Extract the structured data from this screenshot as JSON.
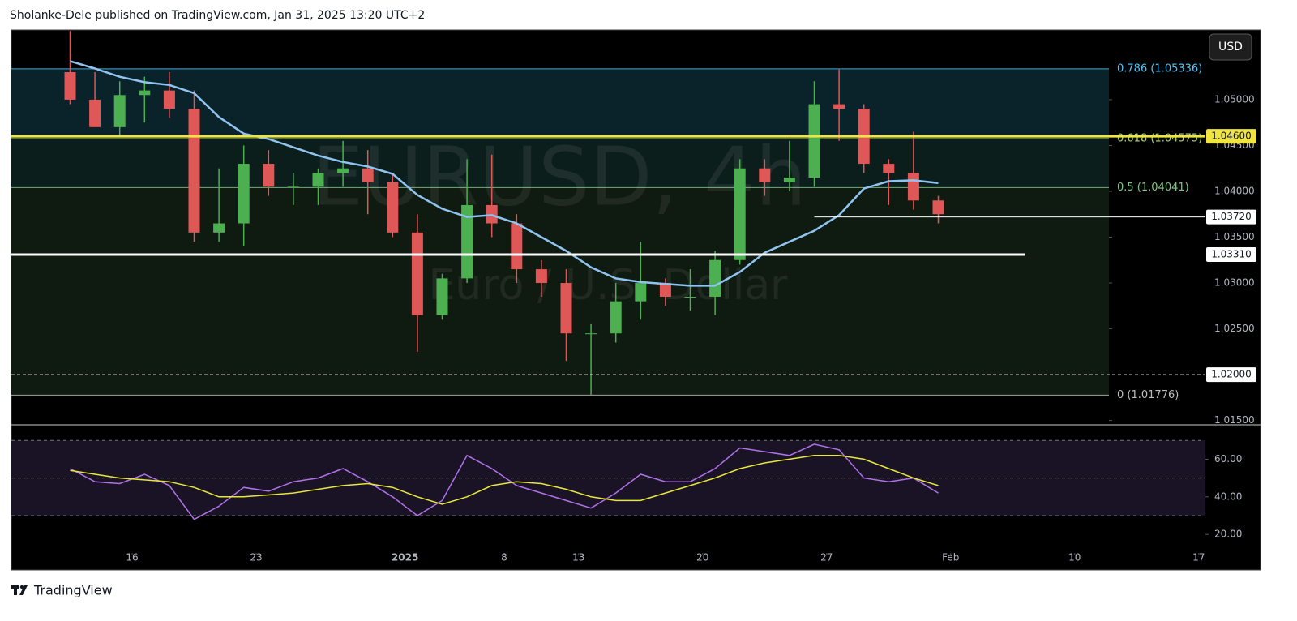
{
  "header": {
    "title": "Sholanke-Dele published on TradingView.com, Jan 31, 2025 13:20 UTC+2",
    "currency_button": "USD",
    "logo": "TradingView"
  },
  "chart_data": [
    {
      "type": "candlestick",
      "watermark": "EURUSD, 4h",
      "subtitle": "Euro / U.S. Dollar",
      "up_color": "#4caf50",
      "down_color": "#e05757",
      "x": [
        "2024-12-11",
        "2024-12-12",
        "2024-12-13",
        "2024-12-16",
        "2024-12-17",
        "2024-12-18",
        "2024-12-19",
        "2024-12-20",
        "2024-12-23",
        "2024-12-24",
        "2024-12-26",
        "2024-12-27",
        "2024-12-30",
        "2024-12-31",
        "2025-01-02",
        "2025-01-03",
        "2025-01-06",
        "2025-01-07",
        "2025-01-08",
        "2025-01-09",
        "2025-01-10",
        "2025-01-13",
        "2025-01-14",
        "2025-01-15",
        "2025-01-16",
        "2025-01-17",
        "2025-01-20",
        "2025-01-21",
        "2025-01-22",
        "2025-01-23",
        "2025-01-24",
        "2025-01-27",
        "2025-01-28",
        "2025-01-29",
        "2025-01-30",
        "2025-01-31"
      ],
      "open": [
        1.053,
        1.05,
        1.047,
        1.0505,
        1.051,
        1.049,
        1.0355,
        1.0365,
        1.043,
        1.0405,
        1.0405,
        1.042,
        1.0425,
        1.041,
        1.0355,
        1.0265,
        1.0305,
        1.0385,
        1.0365,
        1.0315,
        1.03,
        1.0245,
        1.0245,
        1.028,
        1.03,
        1.0285,
        1.0285,
        1.0325,
        1.0425,
        1.041,
        1.0415,
        1.0495,
        1.049,
        1.043,
        1.042,
        1.039
      ],
      "high": [
        1.0575,
        1.053,
        1.052,
        1.0525,
        1.053,
        1.051,
        1.0425,
        1.045,
        1.0445,
        1.042,
        1.0425,
        1.0455,
        1.0445,
        1.042,
        1.0375,
        1.031,
        1.0435,
        1.044,
        1.0375,
        1.0325,
        1.0315,
        1.0255,
        1.03,
        1.0345,
        1.0305,
        1.0315,
        1.0335,
        1.0435,
        1.0435,
        1.0455,
        1.052,
        1.0533,
        1.0495,
        1.0435,
        1.0465,
        1.0395
      ],
      "low": [
        1.0495,
        1.047,
        1.046,
        1.0475,
        1.048,
        1.0345,
        1.0345,
        1.034,
        1.0395,
        1.0385,
        1.0385,
        1.0405,
        1.0375,
        1.035,
        1.0225,
        1.026,
        1.03,
        1.035,
        1.03,
        1.0285,
        1.0215,
        1.0178,
        1.0235,
        1.026,
        1.0275,
        1.027,
        1.0265,
        1.032,
        1.0395,
        1.04,
        1.0405,
        1.0455,
        1.042,
        1.0385,
        1.038,
        1.0365
      ],
      "close": [
        1.05,
        1.047,
        1.0505,
        1.051,
        1.049,
        1.0355,
        1.0365,
        1.043,
        1.0405,
        1.0405,
        1.042,
        1.0425,
        1.041,
        1.0355,
        1.0265,
        1.0305,
        1.0385,
        1.0365,
        1.0315,
        1.03,
        1.0245,
        1.0245,
        1.028,
        1.03,
        1.0285,
        1.0285,
        1.0325,
        1.0425,
        1.041,
        1.0415,
        1.0495,
        1.049,
        1.043,
        1.042,
        1.039,
        1.0375
      ],
      "ma": {
        "color": "#90c4f0",
        "values": [
          1.0542,
          1.0534,
          1.0525,
          1.0519,
          1.0516,
          1.0507,
          1.0481,
          1.0463,
          1.0457,
          1.0448,
          1.0439,
          1.0432,
          1.0427,
          1.0419,
          1.0396,
          1.0381,
          1.0372,
          1.0374,
          1.0365,
          1.035,
          1.0335,
          1.0317,
          1.0305,
          1.0301,
          1.0299,
          1.0297,
          1.0297,
          1.0312,
          1.0333,
          1.0345,
          1.0357,
          1.0374,
          1.0403,
          1.0411,
          1.0412,
          1.0409
        ]
      },
      "ylim": [
        1.0147,
        1.0576
      ],
      "yticks": [
        {
          "value": 1.05,
          "label": "1.05000"
        },
        {
          "value": 1.045,
          "label": "1.04500"
        },
        {
          "value": 1.04,
          "label": "1.04000"
        },
        {
          "value": 1.035,
          "label": "1.03500"
        },
        {
          "value": 1.03,
          "label": "1.03000"
        },
        {
          "value": 1.025,
          "label": "1.02500"
        },
        {
          "value": 1.015,
          "label": "1.01500"
        }
      ],
      "fib_levels": [
        {
          "value": 1.05336,
          "label": "0.786 (1.05336)",
          "color": "#4fc3f7",
          "fill": "#0a2229"
        },
        {
          "value": 1.04575,
          "label": "0.618 (1.04575)",
          "color": "#a9d86e",
          "fill": "#0b1e1c"
        },
        {
          "value": 1.04041,
          "label": "0.5 (1.04041)",
          "color": "#81c784",
          "fill": "#0f1a10"
        },
        {
          "value": 1.01776,
          "label": "0 (1.01776)",
          "color": "#bdbdbd"
        }
      ],
      "levels": [
        {
          "value": 1.046,
          "label": "1.04600",
          "color": "#f0e442",
          "width": 3,
          "dash": false
        },
        {
          "value": 1.0372,
          "label": "1.03720",
          "color": "#ffffff",
          "width": 1,
          "dash": false,
          "from": "2025-01-24"
        },
        {
          "value": 1.0331,
          "label": "1.03310",
          "color": "#ffffff",
          "width": 3,
          "dash": false,
          "to": "2025-02-06"
        },
        {
          "value": 1.02,
          "label": "1.02000",
          "color": "#ffffff",
          "width": 1,
          "dash": true
        }
      ],
      "xticks": [
        {
          "value": "2024-12-16",
          "label": "16"
        },
        {
          "value": "2024-12-23",
          "label": "23"
        },
        {
          "value": "2025-01-02",
          "label": "2025"
        },
        {
          "value": "2025-01-08",
          "label": "8"
        },
        {
          "value": "2025-01-13",
          "label": "13"
        },
        {
          "value": "2025-01-20",
          "label": "20"
        },
        {
          "value": "2025-01-27",
          "label": "27"
        },
        {
          "value": "2025-02-03",
          "label": "Feb"
        },
        {
          "value": "2025-02-10",
          "label": "10"
        },
        {
          "value": "2025-02-17",
          "label": "17"
        }
      ]
    },
    {
      "type": "line",
      "series": [
        {
          "color": "#b072e8",
          "values": [
            55,
            48,
            47,
            52,
            46,
            28,
            35,
            45,
            43,
            48,
            50,
            55,
            48,
            40,
            30,
            38,
            62,
            55,
            46,
            42,
            38,
            34,
            42,
            52,
            48,
            48,
            55,
            66,
            64,
            62,
            68,
            65,
            50,
            48,
            50,
            42
          ]
        },
        {
          "color": "#e8e83c",
          "values": [
            54,
            52,
            50,
            49,
            48,
            45,
            40,
            40,
            41,
            42,
            44,
            46,
            47,
            45,
            40,
            36,
            40,
            46,
            48,
            47,
            44,
            40,
            38,
            38,
            42,
            46,
            50,
            55,
            58,
            60,
            62,
            62,
            60,
            55,
            50,
            46
          ]
        }
      ],
      "ylim": [
        11,
        77
      ],
      "yticks": [
        {
          "value": 60,
          "label": "60.00"
        },
        {
          "value": 40,
          "label": "40.00"
        },
        {
          "value": 20,
          "label": "20.00"
        }
      ],
      "bands": [
        70,
        50,
        30
      ],
      "band_fill": "#1a1326"
    }
  ]
}
